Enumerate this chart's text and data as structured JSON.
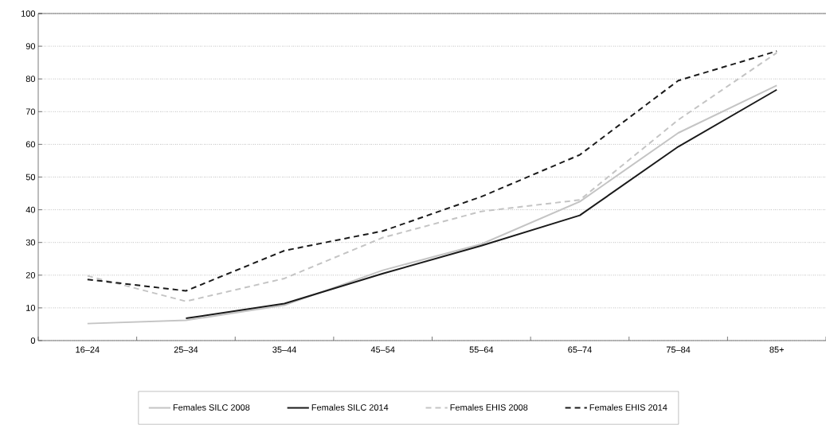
{
  "chart_data": {
    "type": "line",
    "categories": [
      "16–24",
      "25–34",
      "35–44",
      "45–54",
      "55–64",
      "65–74",
      "75–84",
      "85+"
    ],
    "series": [
      {
        "name": "Females SILC 2008",
        "color": "#c4c4c4",
        "line_style": "solid",
        "values": [
          5.2,
          6.2,
          10.8,
          21.5,
          29.5,
          42.5,
          63.5,
          78
        ]
      },
      {
        "name": "Females SILC 2014",
        "color": "#1a1a1a",
        "line_style": "solid",
        "values": [
          null,
          6.8,
          11.3,
          20.5,
          29,
          38.3,
          59.3,
          76.7
        ]
      },
      {
        "name": "Females EHIS 2008",
        "color": "#c4c4c4",
        "line_style": "dashed",
        "values": [
          19.8,
          12,
          19,
          31.5,
          39.5,
          43,
          67.5,
          88
        ]
      },
      {
        "name": "Females EHIS 2014",
        "color": "#1a1a1a",
        "line_style": "dashed",
        "values": [
          18.7,
          15.2,
          27.5,
          33.5,
          44,
          56.8,
          79.5,
          88.5
        ]
      }
    ],
    "ylim": [
      0,
      100
    ],
    "yticks": [
      0,
      10,
      20,
      30,
      40,
      50,
      60,
      70,
      80,
      90,
      100
    ],
    "grid": "y",
    "legend": "bottom",
    "marker": "none"
  }
}
